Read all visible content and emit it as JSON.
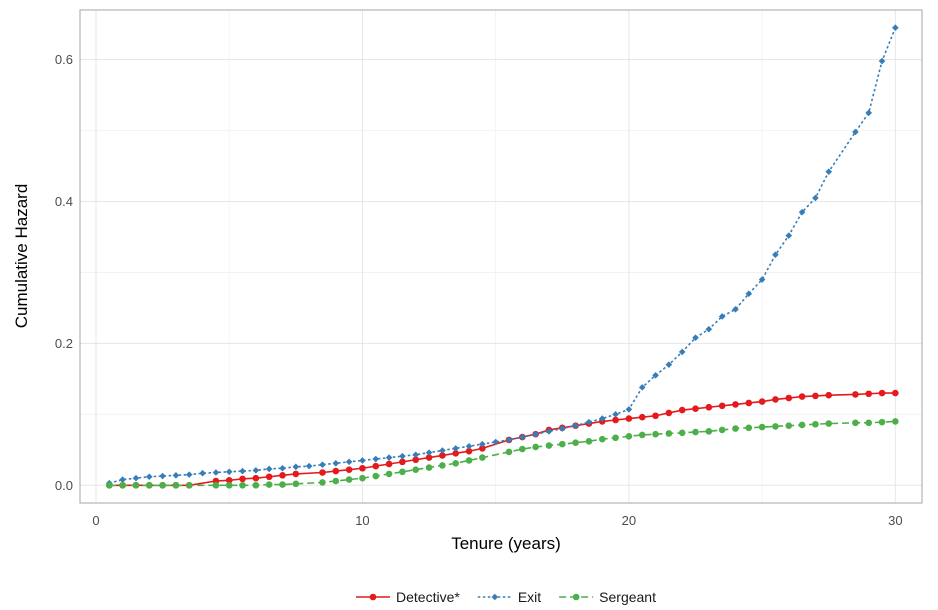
{
  "chart_data": {
    "type": "line",
    "title": "",
    "xlabel": "Tenure (years)",
    "ylabel": "Cumulative Hazard",
    "xlim": [
      -0.6,
      31.0
    ],
    "ylim": [
      -0.025,
      0.67
    ],
    "x_ticks": [
      0,
      10,
      20,
      30
    ],
    "x_tick_labels": [
      "0",
      "10",
      "20",
      "30"
    ],
    "y_ticks": [
      0.0,
      0.2,
      0.4,
      0.6
    ],
    "y_tick_labels": [
      "0.0",
      "0.2",
      "0.4",
      "0.6"
    ],
    "grid": true,
    "legend_position": "bottom",
    "series": [
      {
        "name": "Detective*",
        "color": "#e41a1c",
        "dash": "solid",
        "marker": "circle",
        "points": [
          [
            0.5,
            0.0
          ],
          [
            1.0,
            0.0
          ],
          [
            1.5,
            0.0
          ],
          [
            2.0,
            0.0
          ],
          [
            2.5,
            0.0
          ],
          [
            3.0,
            0.0
          ],
          [
            3.5,
            0.0
          ],
          [
            4.5,
            0.006
          ],
          [
            5.0,
            0.007
          ],
          [
            5.5,
            0.009
          ],
          [
            6.0,
            0.01
          ],
          [
            6.5,
            0.012
          ],
          [
            7.0,
            0.014
          ],
          [
            7.5,
            0.016
          ],
          [
            8.5,
            0.018
          ],
          [
            9.0,
            0.02
          ],
          [
            9.5,
            0.022
          ],
          [
            10.0,
            0.024
          ],
          [
            10.5,
            0.027
          ],
          [
            11.0,
            0.03
          ],
          [
            11.5,
            0.033
          ],
          [
            12.0,
            0.036
          ],
          [
            12.5,
            0.039
          ],
          [
            13.0,
            0.042
          ],
          [
            13.5,
            0.045
          ],
          [
            14.0,
            0.048
          ],
          [
            14.5,
            0.052
          ],
          [
            15.5,
            0.064
          ],
          [
            16.0,
            0.068
          ],
          [
            16.5,
            0.072
          ],
          [
            17.0,
            0.078
          ],
          [
            17.5,
            0.081
          ],
          [
            18.0,
            0.084
          ],
          [
            18.5,
            0.087
          ],
          [
            19.0,
            0.09
          ],
          [
            19.5,
            0.092
          ],
          [
            20.0,
            0.094
          ],
          [
            20.5,
            0.096
          ],
          [
            21.0,
            0.098
          ],
          [
            21.5,
            0.102
          ],
          [
            22.0,
            0.106
          ],
          [
            22.5,
            0.108
          ],
          [
            23.0,
            0.11
          ],
          [
            23.5,
            0.112
          ],
          [
            24.0,
            0.114
          ],
          [
            24.5,
            0.116
          ],
          [
            25.0,
            0.118
          ],
          [
            25.5,
            0.121
          ],
          [
            26.0,
            0.123
          ],
          [
            26.5,
            0.125
          ],
          [
            27.0,
            0.126
          ],
          [
            27.5,
            0.127
          ],
          [
            28.5,
            0.128
          ],
          [
            29.0,
            0.129
          ],
          [
            29.5,
            0.13
          ],
          [
            30.0,
            0.13
          ]
        ]
      },
      {
        "name": "Exit",
        "color": "#377eb8",
        "dash": "dotted",
        "marker": "diamond",
        "points": [
          [
            0.5,
            0.003
          ],
          [
            1.0,
            0.008
          ],
          [
            1.5,
            0.01
          ],
          [
            2.0,
            0.012
          ],
          [
            2.5,
            0.013
          ],
          [
            3.0,
            0.014
          ],
          [
            3.5,
            0.015
          ],
          [
            4.0,
            0.017
          ],
          [
            4.5,
            0.018
          ],
          [
            5.0,
            0.019
          ],
          [
            5.5,
            0.02
          ],
          [
            6.0,
            0.021
          ],
          [
            6.5,
            0.023
          ],
          [
            7.0,
            0.024
          ],
          [
            7.5,
            0.026
          ],
          [
            8.0,
            0.027
          ],
          [
            8.5,
            0.029
          ],
          [
            9.0,
            0.031
          ],
          [
            9.5,
            0.033
          ],
          [
            10.0,
            0.035
          ],
          [
            10.5,
            0.037
          ],
          [
            11.0,
            0.039
          ],
          [
            11.5,
            0.041
          ],
          [
            12.0,
            0.043
          ],
          [
            12.5,
            0.046
          ],
          [
            13.0,
            0.049
          ],
          [
            13.5,
            0.052
          ],
          [
            14.0,
            0.055
          ],
          [
            14.5,
            0.058
          ],
          [
            15.0,
            0.061
          ],
          [
            15.5,
            0.064
          ],
          [
            16.0,
            0.068
          ],
          [
            16.5,
            0.072
          ],
          [
            17.0,
            0.076
          ],
          [
            17.5,
            0.08
          ],
          [
            18.0,
            0.084
          ],
          [
            18.5,
            0.089
          ],
          [
            19.0,
            0.094
          ],
          [
            19.5,
            0.1
          ],
          [
            20.0,
            0.107
          ],
          [
            20.5,
            0.138
          ],
          [
            21.0,
            0.155
          ],
          [
            21.5,
            0.17
          ],
          [
            22.0,
            0.188
          ],
          [
            22.5,
            0.208
          ],
          [
            23.0,
            0.22
          ],
          [
            23.5,
            0.238
          ],
          [
            24.0,
            0.248
          ],
          [
            24.5,
            0.27
          ],
          [
            25.0,
            0.29
          ],
          [
            25.5,
            0.325
          ],
          [
            26.0,
            0.352
          ],
          [
            26.5,
            0.385
          ],
          [
            27.0,
            0.405
          ],
          [
            27.5,
            0.442
          ],
          [
            28.5,
            0.498
          ],
          [
            29.0,
            0.525
          ],
          [
            29.5,
            0.598
          ],
          [
            30.0,
            0.645
          ]
        ]
      },
      {
        "name": "Sergeant",
        "color": "#4daf4a",
        "dash": "dashed",
        "marker": "circle",
        "points": [
          [
            0.5,
            0.0
          ],
          [
            1.0,
            0.0
          ],
          [
            1.5,
            0.0
          ],
          [
            2.0,
            0.0
          ],
          [
            2.5,
            0.0
          ],
          [
            3.0,
            0.0
          ],
          [
            3.5,
            0.0
          ],
          [
            4.5,
            0.0
          ],
          [
            5.0,
            0.0
          ],
          [
            5.5,
            0.0
          ],
          [
            6.0,
            0.0
          ],
          [
            6.5,
            0.001
          ],
          [
            7.0,
            0.001
          ],
          [
            7.5,
            0.002
          ],
          [
            8.5,
            0.004
          ],
          [
            9.0,
            0.006
          ],
          [
            9.5,
            0.008
          ],
          [
            10.0,
            0.01
          ],
          [
            10.5,
            0.013
          ],
          [
            11.0,
            0.016
          ],
          [
            11.5,
            0.019
          ],
          [
            12.0,
            0.022
          ],
          [
            12.5,
            0.025
          ],
          [
            13.0,
            0.028
          ],
          [
            13.5,
            0.031
          ],
          [
            14.0,
            0.035
          ],
          [
            14.5,
            0.039
          ],
          [
            15.5,
            0.047
          ],
          [
            16.0,
            0.051
          ],
          [
            16.5,
            0.054
          ],
          [
            17.0,
            0.056
          ],
          [
            17.5,
            0.058
          ],
          [
            18.0,
            0.06
          ],
          [
            18.5,
            0.062
          ],
          [
            19.0,
            0.065
          ],
          [
            19.5,
            0.067
          ],
          [
            20.0,
            0.069
          ],
          [
            20.5,
            0.071
          ],
          [
            21.0,
            0.072
          ],
          [
            21.5,
            0.073
          ],
          [
            22.0,
            0.074
          ],
          [
            22.5,
            0.075
          ],
          [
            23.0,
            0.076
          ],
          [
            23.5,
            0.078
          ],
          [
            24.0,
            0.08
          ],
          [
            24.5,
            0.081
          ],
          [
            25.0,
            0.082
          ],
          [
            25.5,
            0.083
          ],
          [
            26.0,
            0.084
          ],
          [
            26.5,
            0.085
          ],
          [
            27.0,
            0.086
          ],
          [
            27.5,
            0.087
          ],
          [
            28.5,
            0.088
          ],
          [
            29.0,
            0.088
          ],
          [
            29.5,
            0.089
          ],
          [
            30.0,
            0.09
          ]
        ]
      }
    ]
  }
}
